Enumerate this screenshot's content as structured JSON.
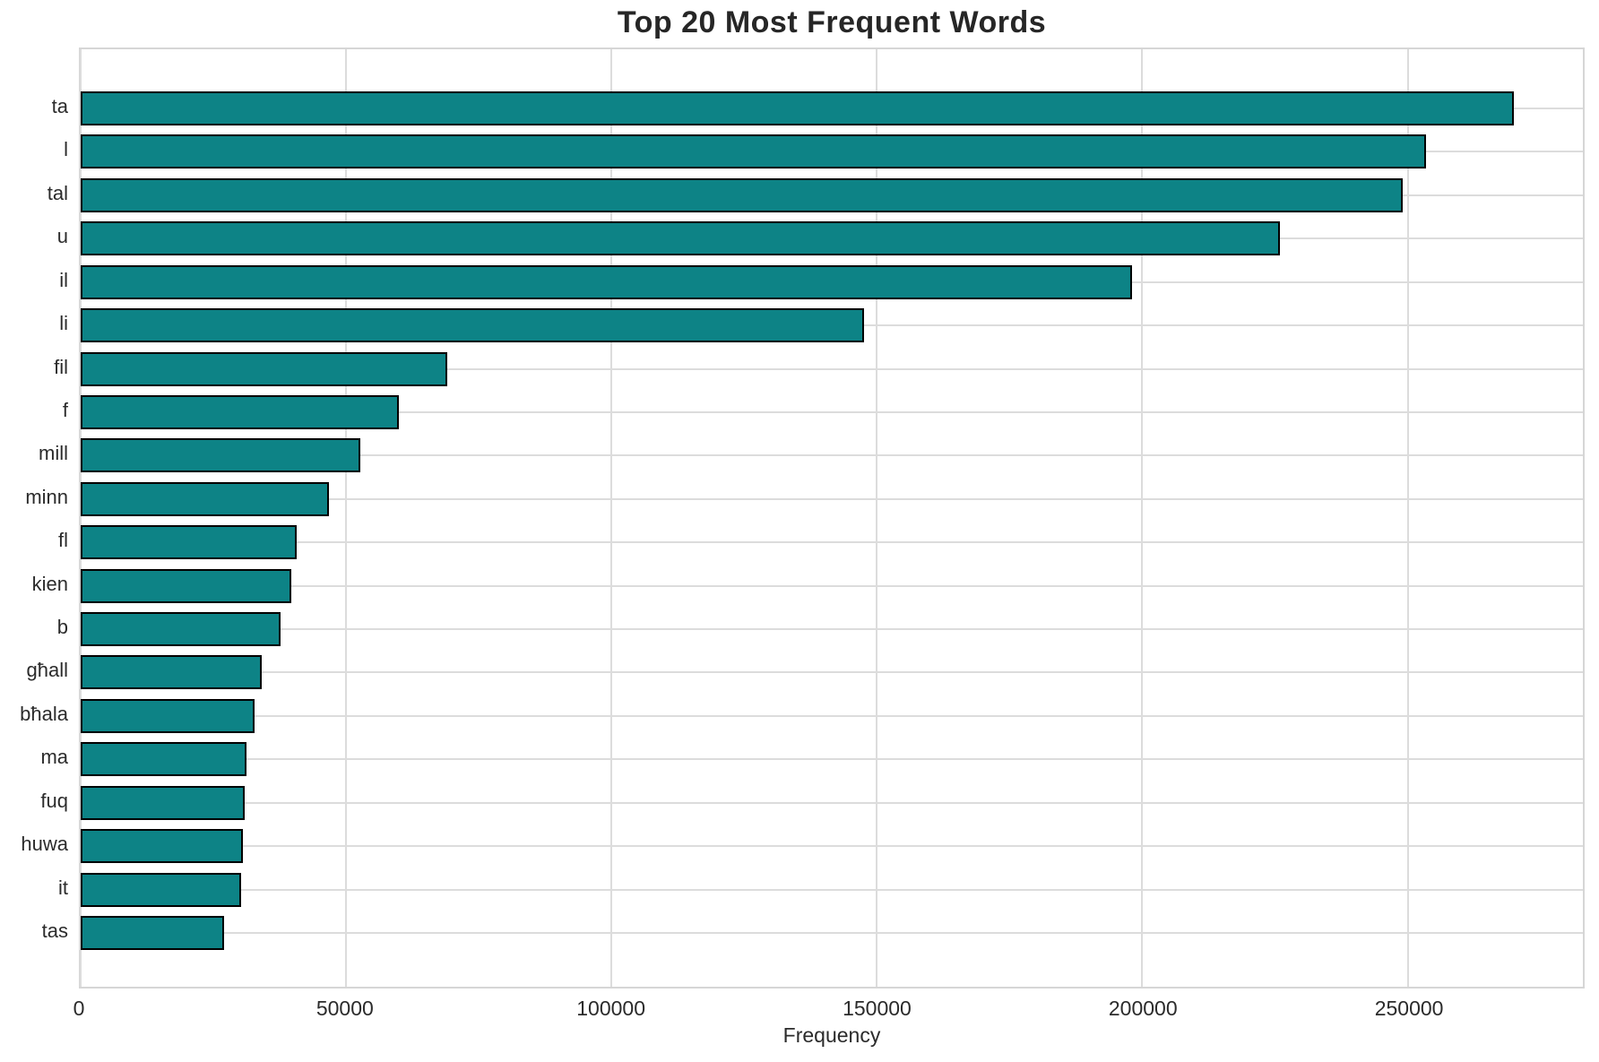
{
  "chart_data": {
    "type": "bar",
    "orientation": "horizontal",
    "title": "Top 20 Most Frequent Words",
    "xlabel": "Frequency",
    "categories": [
      "ta",
      "l",
      "tal",
      "u",
      "il",
      "li",
      "fil",
      "f",
      "mill",
      "minn",
      "fl",
      "kien",
      "b",
      "għall",
      "bħala",
      "ma",
      "fuq",
      "huwa",
      "it",
      "tas"
    ],
    "values": [
      270000,
      253500,
      249000,
      226000,
      198000,
      147500,
      69000,
      60000,
      52600,
      46700,
      40700,
      39700,
      37600,
      34100,
      32800,
      31300,
      30900,
      30600,
      30300,
      27100
    ],
    "x_ticks": [
      0,
      50000,
      100000,
      150000,
      200000,
      250000
    ],
    "xlim": [
      0,
      283000
    ],
    "grid": true,
    "legend": false,
    "bar_color": "#0d8386",
    "bar_edge_color": "#000000",
    "grid_color": "#dcdcdc",
    "background_color": "#ffffff",
    "text_color": "#2b2b2b",
    "title_color": "#262626"
  }
}
